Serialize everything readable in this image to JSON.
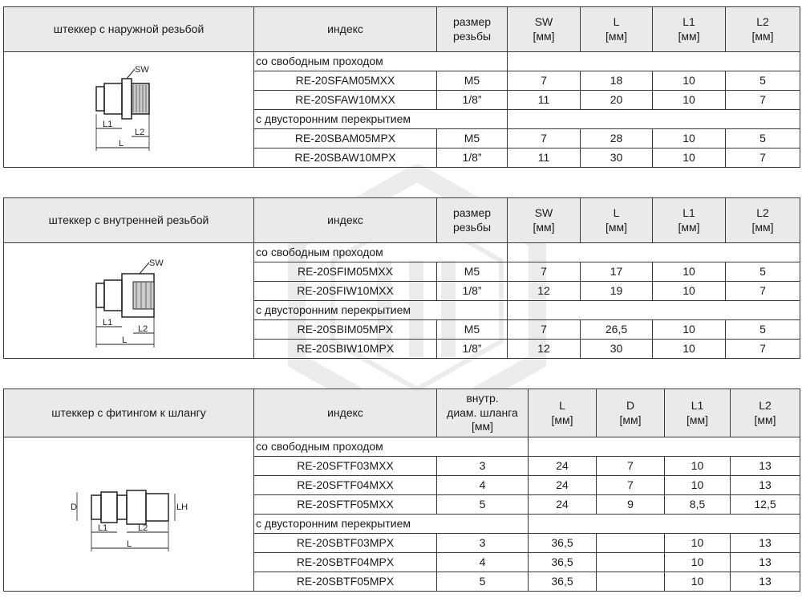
{
  "tables": [
    {
      "title": "штеккер с наружной резьбой",
      "headers": [
        "индекс",
        "размер\nрезьбы",
        "SW\n[мм]",
        "L\n[мм]",
        "L1\n[мм]",
        "L2\n[мм]"
      ],
      "sections": [
        {
          "label": "со свободным проходом",
          "rows": [
            [
              "RE-20SFAM05MXX",
              "M5",
              "7",
              "18",
              "10",
              "5"
            ],
            [
              "RE-20SFAW10MXX",
              "1/8”",
              "11",
              "20",
              "10",
              "7"
            ]
          ]
        },
        {
          "label": "с двусторонним перекрытием",
          "rows": [
            [
              "RE-20SBAM05MPX",
              "M5",
              "7",
              "28",
              "10",
              "5"
            ],
            [
              "RE-20SBAW10MPX",
              "1/8”",
              "11",
              "30",
              "10",
              "7"
            ]
          ]
        }
      ],
      "drawing_labels": {
        "sw": "SW",
        "l": "L",
        "l1": "L1",
        "l2": "L2"
      }
    },
    {
      "title": "штеккер с внутренней резьбой",
      "headers": [
        "индекс",
        "размер\nрезьбы",
        "SW\n[мм]",
        "L\n[мм]",
        "L1\n[мм]",
        "L2\n[мм]"
      ],
      "sections": [
        {
          "label": "со свободным проходом",
          "rows": [
            [
              "RE-20SFIM05MXX",
              "M5",
              "7",
              "17",
              "10",
              "5"
            ],
            [
              "RE-20SFIW10MXX",
              "1/8”",
              "12",
              "19",
              "10",
              "7"
            ]
          ]
        },
        {
          "label": "с двусторонним перекрытием",
          "rows": [
            [
              "RE-20SBIM05MPX",
              "M5",
              "7",
              "26,5",
              "10",
              "5"
            ],
            [
              "RE-20SBIW10MPX",
              "1/8”",
              "12",
              "30",
              "10",
              "7"
            ]
          ]
        }
      ],
      "drawing_labels": {
        "sw": "SW",
        "l": "L",
        "l1": "L1",
        "l2": "L2"
      }
    },
    {
      "title": "штеккер с фитингом к шлангу",
      "headers": [
        "индекс",
        "внутр.\nдиам. шланга\n[мм]",
        "L\n[мм]",
        "D\n[мм]",
        "L1\n[мм]",
        "L2\n[мм]"
      ],
      "sections": [
        {
          "label": "со свободным проходом",
          "rows": [
            [
              "RE-20SFTF03MXX",
              "3",
              "24",
              "7",
              "10",
              "13"
            ],
            [
              "RE-20SFTF04MXX",
              "4",
              "24",
              "7",
              "10",
              "13"
            ],
            [
              "RE-20SFTF05MXX",
              "5",
              "24",
              "9",
              "8,5",
              "12,5"
            ]
          ]
        },
        {
          "label": "с двусторонним перекрытием",
          "rows": [
            [
              "RE-20SBTF03MPX",
              "3",
              "36,5",
              "",
              "10",
              "13"
            ],
            [
              "RE-20SBTF04MPX",
              "4",
              "36,5",
              "",
              "10",
              "13"
            ],
            [
              "RE-20SBTF05MPX",
              "5",
              "36,5",
              "",
              "10",
              "13"
            ]
          ]
        }
      ],
      "drawing_labels": {
        "d": "D",
        "lh": "LH",
        "l": "L",
        "l1": "L1",
        "l2": "L2"
      }
    }
  ],
  "colors": {
    "header_bg": "#eaeaea",
    "border": "#3a3a3a",
    "watermark": "#9a9a9a"
  }
}
